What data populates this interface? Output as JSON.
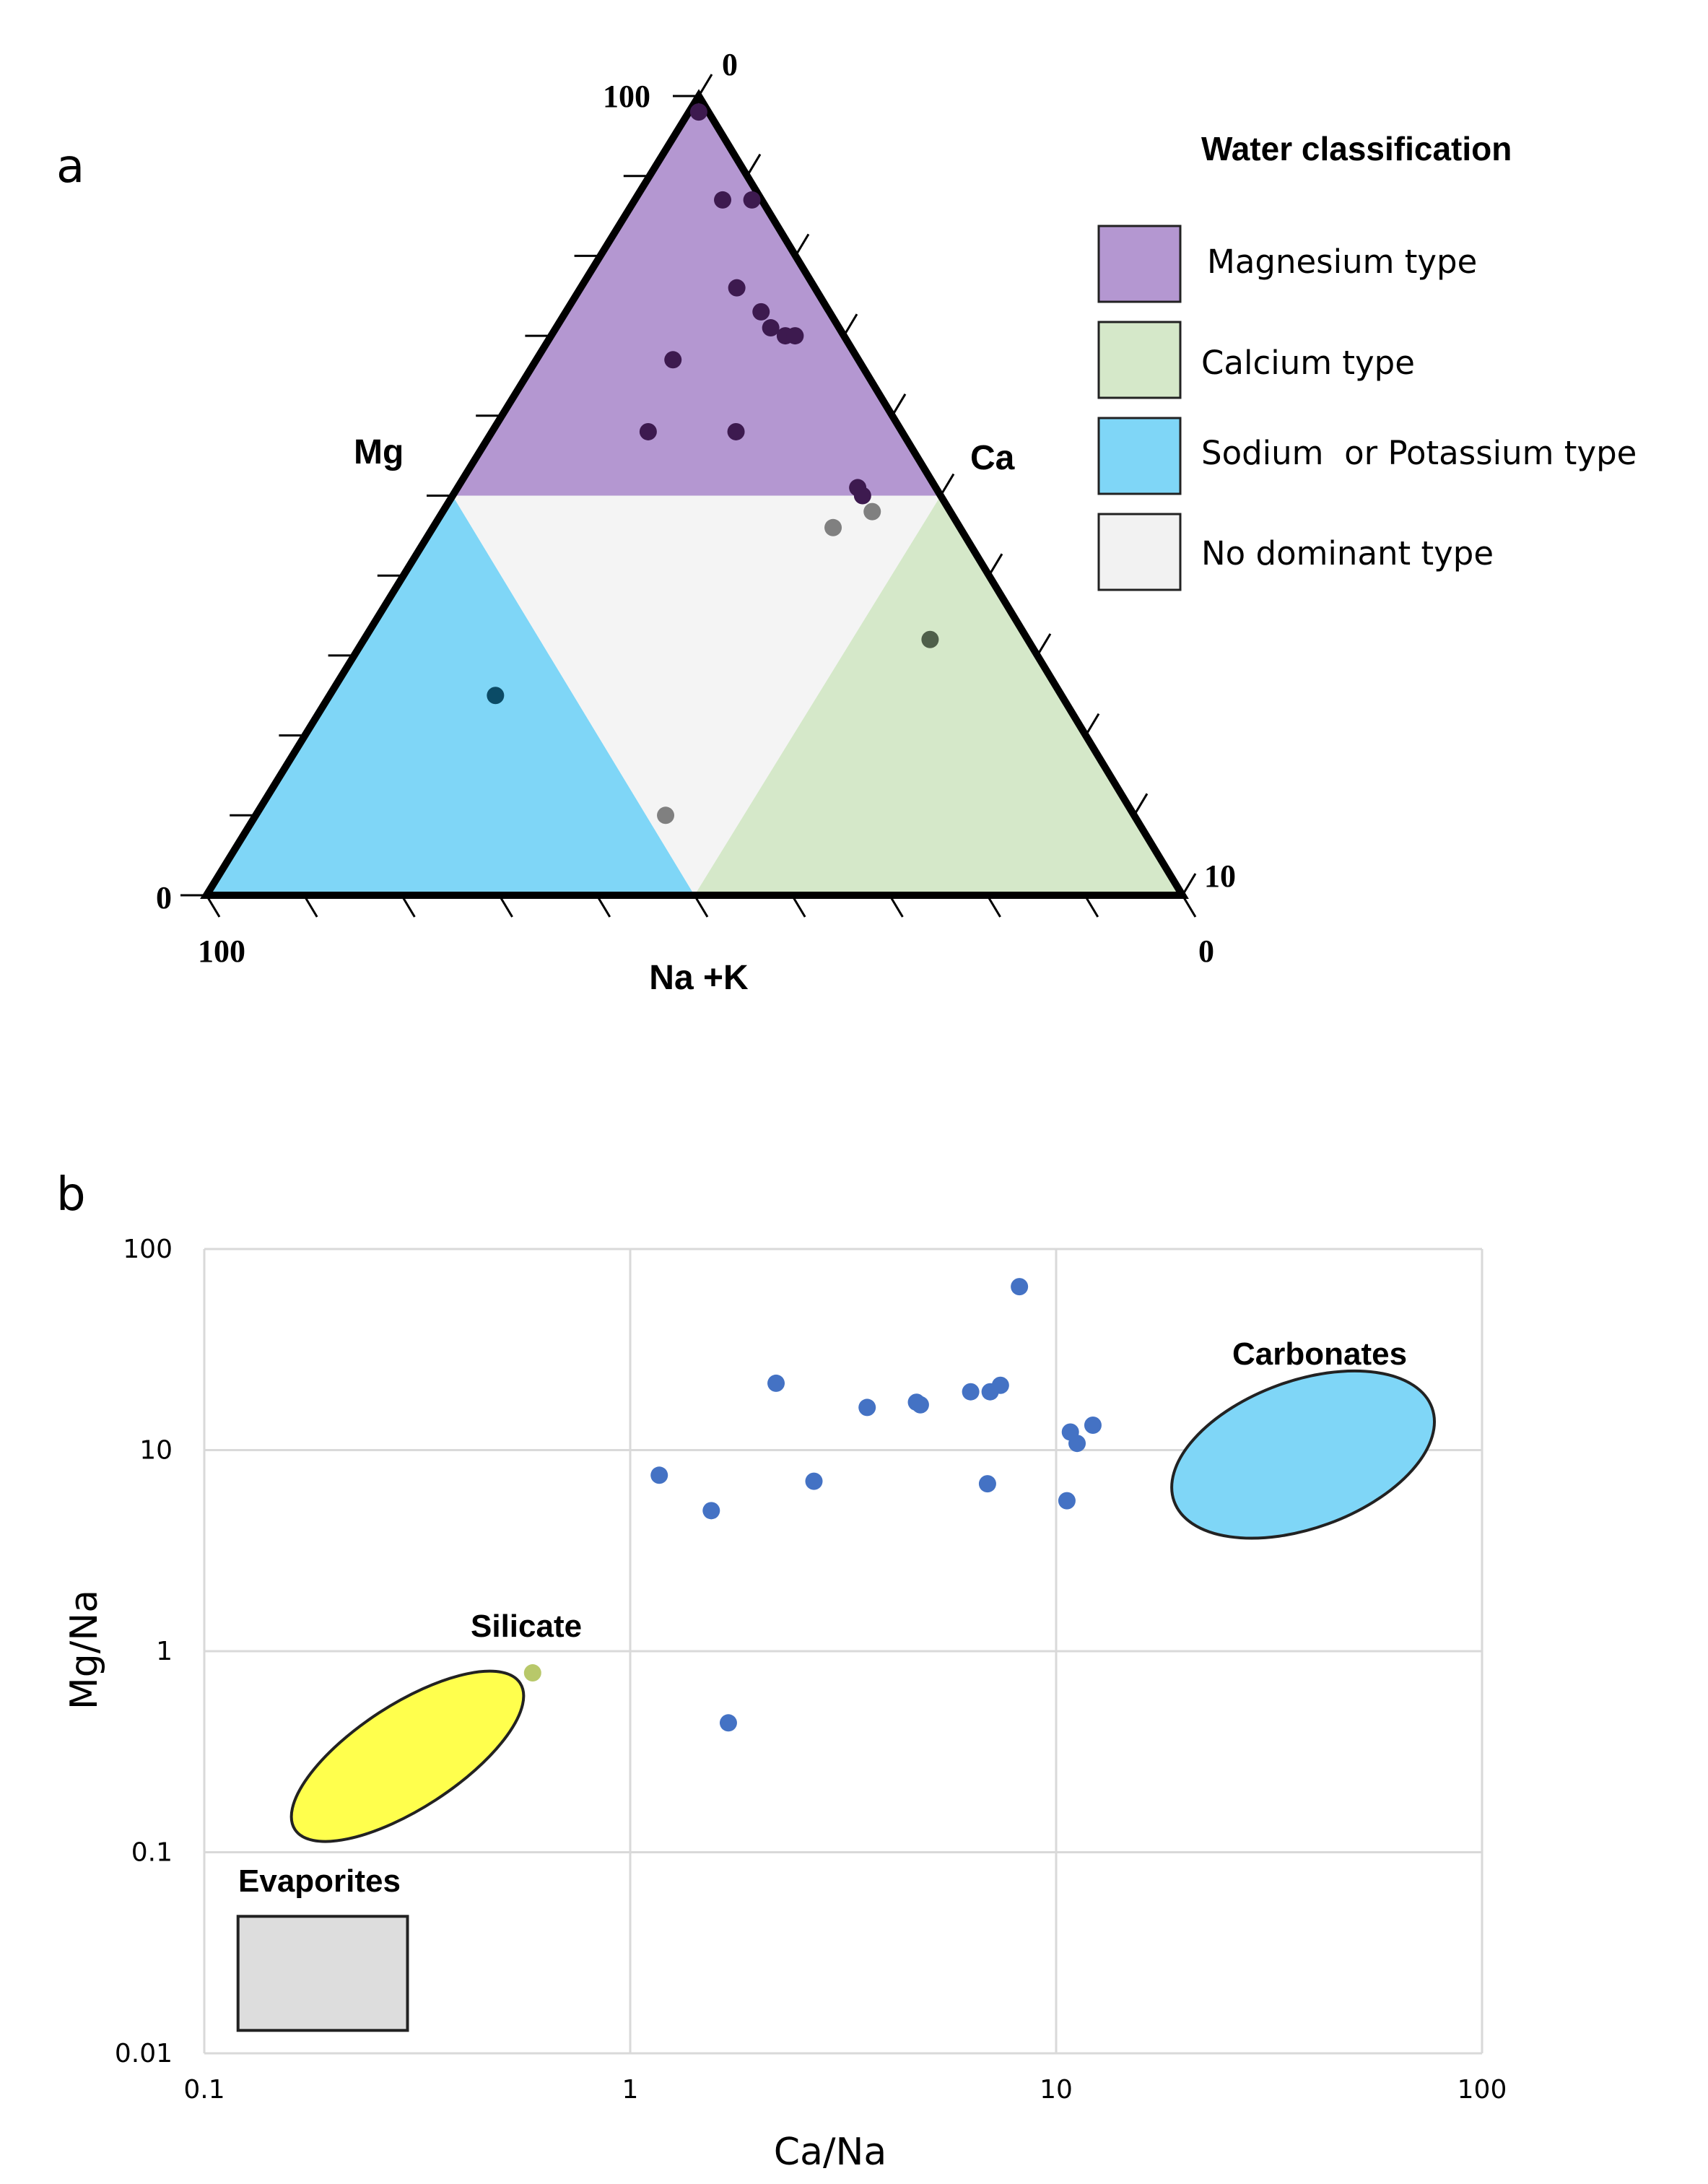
{
  "chart_data": [
    {
      "type": "ternary",
      "panel_label": "a",
      "axes": {
        "left": {
          "label": "Mg",
          "tick_max": "100",
          "tick_min": "0"
        },
        "right": {
          "label": "Ca",
          "tick_top": "0",
          "tick_bottom": "10"
        },
        "bottom": {
          "label": "Na +K",
          "tick_left": "100",
          "tick_right": "0"
        }
      },
      "legend": {
        "title": "Water classification",
        "items": [
          {
            "label": "Magnesium type",
            "color": "#b497d1"
          },
          {
            "label": "Calcium type",
            "color": "#d5e8c9"
          },
          {
            "label": "Sodium  or Potassium type",
            "color": "#7fd6f7"
          },
          {
            "label": "No dominant type",
            "color": "#f2f2f2"
          }
        ]
      },
      "regions": [
        {
          "name": "Magnesium type",
          "color": "#b497d1"
        },
        {
          "name": "Calcium type",
          "color": "#d5e8c9"
        },
        {
          "name": "Sodium or Potassium type",
          "color": "#7fd6f7"
        },
        {
          "name": "No dominant type",
          "color": "#f4f4f4"
        }
      ],
      "points": [
        {
          "mg": 98,
          "ca": 1,
          "color": "#3d1a4f"
        },
        {
          "mg": 87,
          "ca": 9,
          "color": "#3d1a4f"
        },
        {
          "mg": 87,
          "ca": 12,
          "color": "#3d1a4f"
        },
        {
          "mg": 76,
          "ca": 16,
          "color": "#3d1a4f"
        },
        {
          "mg": 73,
          "ca": 20,
          "color": "#3d1a4f"
        },
        {
          "mg": 71,
          "ca": 22,
          "color": "#3d1a4f"
        },
        {
          "mg": 70,
          "ca": 24,
          "color": "#3d1a4f"
        },
        {
          "mg": 70,
          "ca": 25,
          "color": "#3d1a4f"
        },
        {
          "mg": 67,
          "ca": 14,
          "color": "#3d1a4f"
        },
        {
          "mg": 58,
          "ca": 25,
          "color": "#3d1a4f"
        },
        {
          "mg": 58,
          "ca": 16,
          "color": "#3d1a4f"
        },
        {
          "mg": 51,
          "ca": 41,
          "color": "#3d1a4f"
        },
        {
          "mg": 50,
          "ca": 42,
          "color": "#3d1a4f"
        },
        {
          "mg": 48,
          "ca": 44,
          "color": "#808080"
        },
        {
          "mg": 46,
          "ca": 41,
          "color": "#808080"
        },
        {
          "mg": 32,
          "ca": 58,
          "color": "#4f5f4a"
        },
        {
          "mg": 25,
          "ca": 17,
          "color": "#0b4b66"
        },
        {
          "mg": 10,
          "ca": 42,
          "color": "#808080"
        }
      ]
    },
    {
      "type": "scatter",
      "panel_label": "b",
      "xlabel": "Ca/Na",
      "ylabel": "Mg/Na",
      "xscale": "log",
      "yscale": "log",
      "xlim": [
        0.1,
        100
      ],
      "ylim": [
        0.01,
        100
      ],
      "xticks": [
        "0.1",
        "1",
        "10",
        "100"
      ],
      "yticks": [
        "0.01",
        "0.1",
        "1",
        "10",
        "100"
      ],
      "grid": true,
      "point_color": "#4472c4",
      "x": [
        8.2,
        2.2,
        7.4,
        7.0,
        6.3,
        4.7,
        4.8,
        3.6,
        12.2,
        10.8,
        11.2,
        1.17,
        2.7,
        6.9,
        1.55,
        10.6,
        0.59,
        1.7
      ],
      "y": [
        65,
        21.5,
        21,
        19.5,
        19.5,
        17.3,
        16.8,
        16.3,
        13.3,
        12.3,
        10.8,
        7.5,
        7.0,
        6.8,
        5.0,
        5.6,
        0.78,
        0.44
      ],
      "annotations": [
        {
          "label": "Carbonates",
          "color": "#7fd6f7"
        },
        {
          "label": "Silicate",
          "color": "#ffff4d"
        },
        {
          "label": "Evaporites",
          "color": "#dddddd"
        }
      ]
    }
  ]
}
